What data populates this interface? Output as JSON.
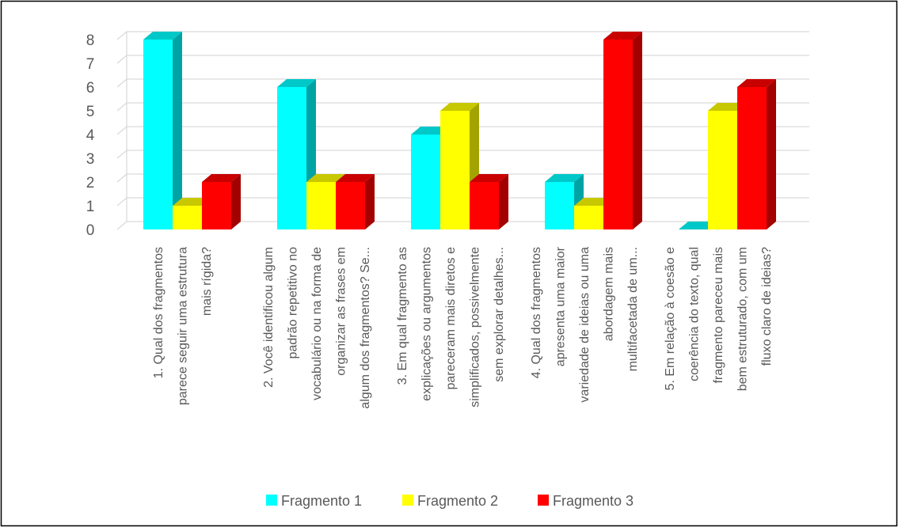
{
  "chart_data": {
    "type": "bar",
    "title": "",
    "xlabel": "",
    "ylabel": "",
    "ylim": [
      0,
      8
    ],
    "yticks": [
      0,
      1,
      2,
      3,
      4,
      5,
      6,
      7,
      8
    ],
    "grid": true,
    "legend_position": "bottom",
    "categories": [
      [
        "1. Qual dos fragmentos",
        "parece seguir uma estrutura",
        "mais rígida?"
      ],
      [
        "2.  Você identificou algum",
        "padrão repetitivo no",
        "vocabulário ou na forma de",
        "organizar as frases em",
        "algum dos fragmentos? Se..."
      ],
      [
        "3. Em qual fragmento as",
        "explicações ou argumentos",
        "pareceram mais diretos e",
        "simplificados, possivelmente",
        "sem explorar detalhes..."
      ],
      [
        "4.  Qual dos fragmentos",
        "apresenta uma maior",
        "variedade de ideias ou uma",
        "abordagem mais",
        "multifacetada de um..."
      ],
      [
        "5.  Em relação à coesão e",
        "coerência do texto, qual",
        "fragmento pareceu mais",
        "bem estruturado, com um",
        "fluxo claro de ideias?"
      ]
    ],
    "series": [
      {
        "name": "Fragmento 1",
        "values": [
          8,
          6,
          4,
          2,
          0
        ],
        "color": "#00FFFF",
        "side": "#00A3A3",
        "top": "#00C8C8"
      },
      {
        "name": "Fragmento 2",
        "values": [
          1,
          2,
          5,
          1,
          5
        ],
        "color": "#FFFF00",
        "side": "#A3A300",
        "top": "#C8C800"
      },
      {
        "name": "Fragmento 3",
        "values": [
          2,
          2,
          2,
          8,
          6
        ],
        "color": "#FF0000",
        "side": "#A30000",
        "top": "#C80000"
      }
    ]
  }
}
